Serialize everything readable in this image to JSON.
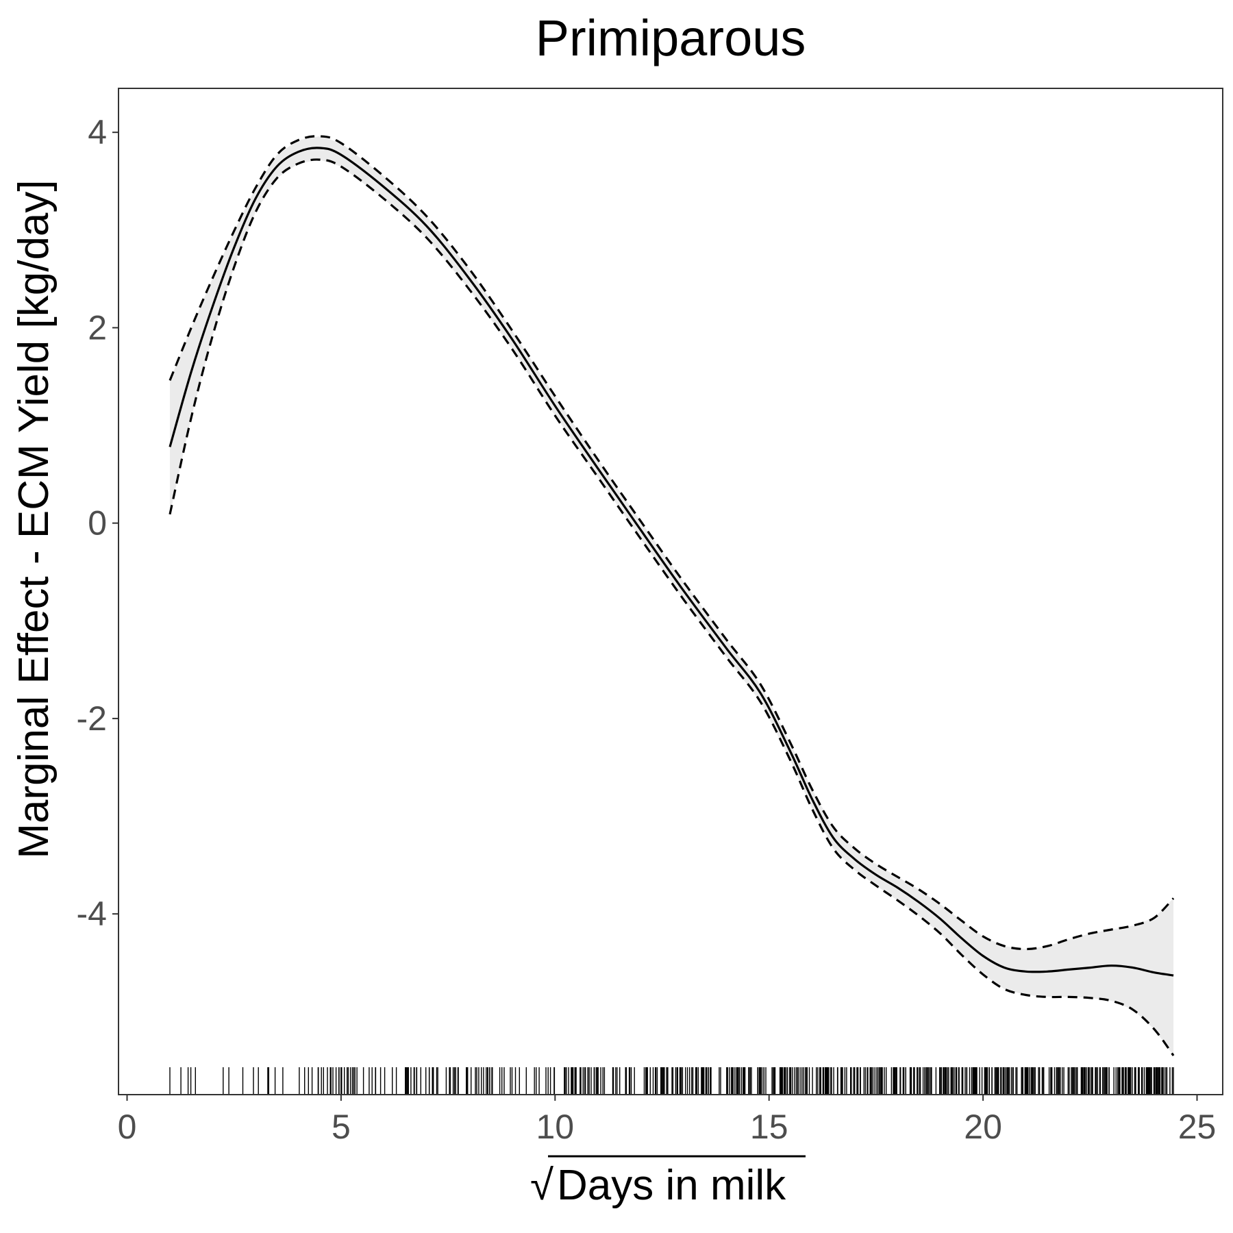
{
  "chart_data": {
    "type": "line",
    "title": "Primiparous",
    "xlabel": "Days in milk",
    "xlabel_radical": "√",
    "ylabel": "Marginal Effect - ECM Yield [kg/day]",
    "xlim": [
      -0.2,
      25.6
    ],
    "ylim": [
      -5.85,
      4.45
    ],
    "x_ticks": [
      0,
      5,
      10,
      15,
      20,
      25
    ],
    "x_tick_labels": [
      "0",
      "5",
      "10",
      "15",
      "20",
      "25"
    ],
    "y_ticks": [
      -4,
      -2,
      0,
      2,
      4
    ],
    "y_tick_labels": [
      "-4",
      "-2",
      "0",
      "2",
      "4"
    ],
    "grid": false,
    "legend": "none",
    "series": [
      {
        "role": "fit",
        "x": [
          1.0,
          1.5,
          2.0,
          2.5,
          3.0,
          3.5,
          4.0,
          4.5,
          5.0,
          6.0,
          7.0,
          8.0,
          9.0,
          10.0,
          11.0,
          12.0,
          13.0,
          14.0,
          14.8,
          15.5,
          16.0,
          16.5,
          17.0,
          17.5,
          18.0,
          18.5,
          19.0,
          19.5,
          20.0,
          20.5,
          21.0,
          21.5,
          22.0,
          22.5,
          23.0,
          23.5,
          24.0,
          24.45
        ],
        "y": [
          0.78,
          1.55,
          2.22,
          2.82,
          3.32,
          3.65,
          3.8,
          3.84,
          3.77,
          3.44,
          3.04,
          2.5,
          1.88,
          1.2,
          0.56,
          -0.07,
          -0.69,
          -1.28,
          -1.74,
          -2.34,
          -2.82,
          -3.22,
          -3.44,
          -3.6,
          -3.73,
          -3.88,
          -4.05,
          -4.25,
          -4.43,
          -4.55,
          -4.59,
          -4.59,
          -4.57,
          -4.55,
          -4.53,
          -4.55,
          -4.6,
          -4.63
        ]
      },
      {
        "role": "upper",
        "x": [
          1.0,
          1.5,
          2.0,
          2.5,
          3.0,
          3.5,
          4.0,
          4.5,
          5.0,
          6.0,
          7.0,
          8.0,
          9.0,
          10.0,
          11.0,
          12.0,
          13.0,
          14.0,
          14.8,
          15.5,
          16.0,
          16.5,
          17.0,
          17.5,
          18.0,
          18.5,
          19.0,
          19.5,
          20.0,
          20.5,
          21.0,
          21.5,
          22.0,
          22.5,
          23.0,
          23.5,
          24.0,
          24.45
        ],
        "y": [
          1.46,
          2.0,
          2.51,
          2.99,
          3.43,
          3.77,
          3.92,
          3.96,
          3.89,
          3.55,
          3.14,
          2.6,
          1.97,
          1.3,
          0.65,
          0.02,
          -0.6,
          -1.19,
          -1.65,
          -2.25,
          -2.72,
          -3.11,
          -3.33,
          -3.49,
          -3.62,
          -3.75,
          -3.9,
          -4.07,
          -4.23,
          -4.33,
          -4.36,
          -4.33,
          -4.26,
          -4.2,
          -4.16,
          -4.12,
          -4.04,
          -3.84
        ]
      },
      {
        "role": "lower",
        "x": [
          1.0,
          1.5,
          2.0,
          2.5,
          3.0,
          3.5,
          4.0,
          4.5,
          5.0,
          6.0,
          7.0,
          8.0,
          9.0,
          10.0,
          11.0,
          12.0,
          13.0,
          14.0,
          14.8,
          15.5,
          16.0,
          16.5,
          17.0,
          17.5,
          18.0,
          18.5,
          19.0,
          19.5,
          20.0,
          20.5,
          21.0,
          21.5,
          22.0,
          22.5,
          23.0,
          23.5,
          24.0,
          24.45
        ],
        "y": [
          0.09,
          1.08,
          1.92,
          2.62,
          3.18,
          3.53,
          3.68,
          3.72,
          3.65,
          3.32,
          2.92,
          2.39,
          1.78,
          1.1,
          0.47,
          -0.16,
          -0.78,
          -1.37,
          -1.83,
          -2.43,
          -2.92,
          -3.33,
          -3.55,
          -3.71,
          -3.86,
          -4.02,
          -4.2,
          -4.42,
          -4.62,
          -4.77,
          -4.83,
          -4.85,
          -4.85,
          -4.86,
          -4.89,
          -4.98,
          -5.18,
          -5.45
        ]
      }
    ],
    "rug": {
      "axis": "x",
      "x_min": 1.0,
      "x_max": 24.45,
      "approx_count": 600
    }
  }
}
